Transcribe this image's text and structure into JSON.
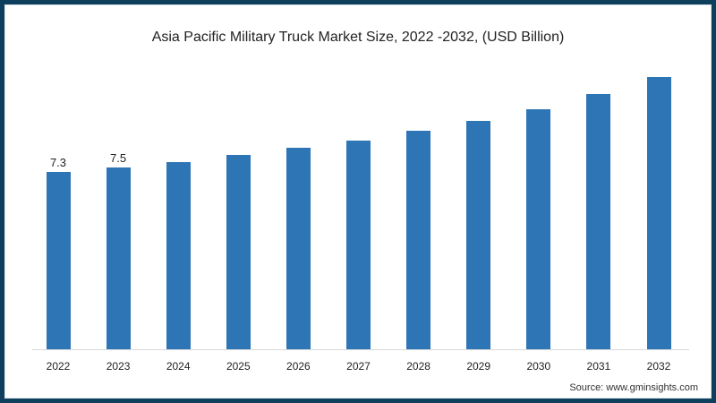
{
  "frame": {
    "border_color": "#0e3f5c",
    "bar_color": "#2e75b6"
  },
  "chart_data": {
    "type": "bar",
    "title": "Asia Pacific Military Truck Market Size, 2022 -2032, (USD Billion)",
    "xlabel": "",
    "ylabel": "",
    "categories": [
      "2022",
      "2023",
      "2024",
      "2025",
      "2026",
      "2027",
      "2028",
      "2029",
      "2030",
      "2031",
      "2032"
    ],
    "values": [
      7.3,
      7.5,
      7.7,
      8.0,
      8.3,
      8.6,
      9.0,
      9.4,
      9.9,
      10.5,
      11.2
    ],
    "data_labels": [
      "7.3",
      "7.5",
      "",
      "",
      "",
      "",
      "",
      "",
      "",
      "",
      ""
    ],
    "ylim": [
      0,
      12
    ],
    "grid": false,
    "legend": null
  },
  "source": "Source: www.gminsights.com"
}
